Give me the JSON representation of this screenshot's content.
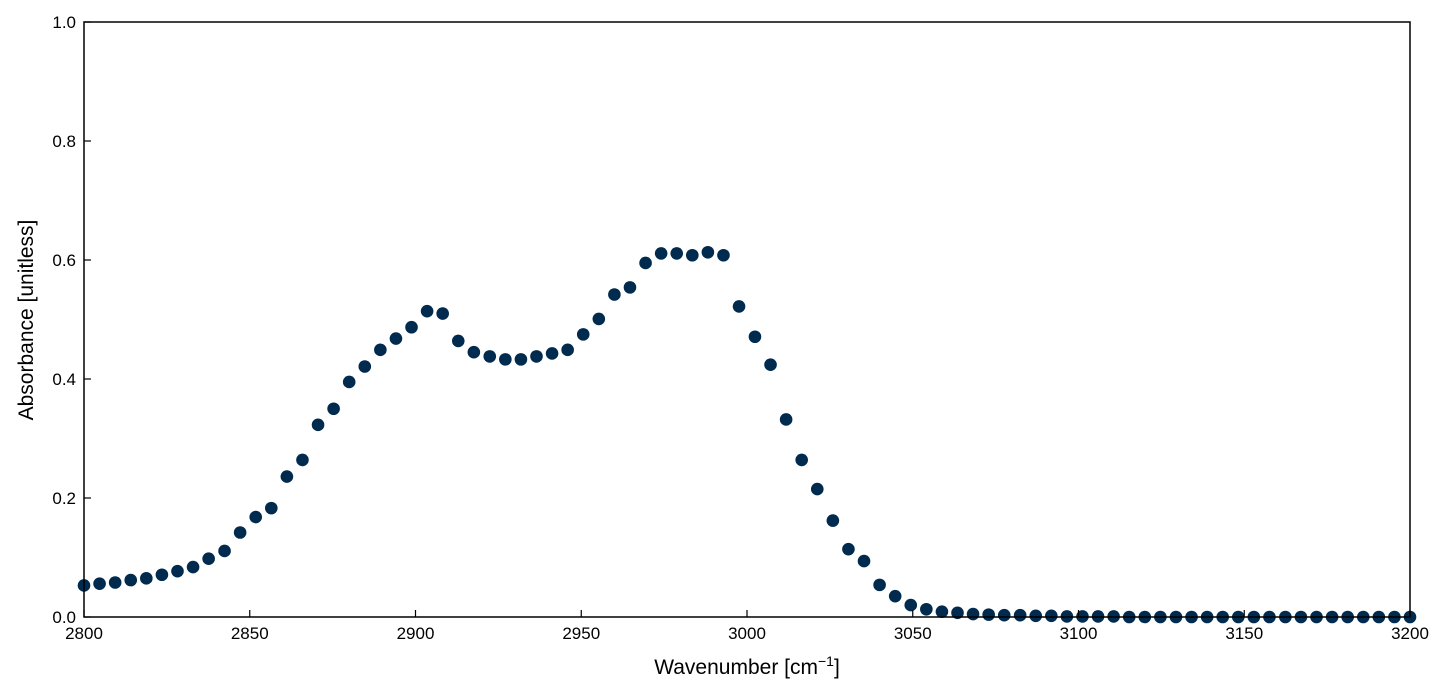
{
  "chart_data": {
    "type": "scatter",
    "title": "",
    "xlabel_main": "Wavenumber [cm",
    "xlabel_sup": "−1",
    "xlabel_end": "]",
    "ylabel": "Absorbance [unitless]",
    "xlim": [
      2800,
      3200
    ],
    "ylim": [
      0,
      1
    ],
    "xticks": [
      2800,
      2850,
      2900,
      2950,
      3000,
      3050,
      3100,
      3150,
      3200
    ],
    "yticks": [
      "0.0",
      "0.2",
      "0.4",
      "0.6",
      "0.8",
      "1.0"
    ],
    "grid": false,
    "marker_color": "#002a4e",
    "series": [
      {
        "x": [
          2800.0,
          2804.7,
          2809.4,
          2814.1,
          2818.8,
          2823.5,
          2828.2,
          2832.9,
          2837.6,
          2842.4,
          2847.1,
          2851.8,
          2856.5,
          2861.2,
          2865.9,
          2870.6,
          2875.3,
          2880.0,
          2884.7,
          2889.4,
          2894.1,
          2898.8,
          2903.5,
          2908.2,
          2912.9,
          2917.6,
          2922.4,
          2927.1,
          2931.8,
          2936.5,
          2941.2,
          2945.9,
          2950.6,
          2955.3,
          2960.0,
          2964.7,
          2969.4,
          2974.1,
          2978.8,
          2983.5,
          2988.2,
          2992.9,
          2997.6,
          3002.4,
          3007.1,
          3011.8,
          3016.5,
          3021.2,
          3025.9,
          3030.6,
          3035.3,
          3040.0,
          3044.7,
          3049.4,
          3054.1,
          3058.8,
          3063.5,
          3068.2,
          3072.9,
          3077.6,
          3082.4,
          3087.1,
          3091.8,
          3096.5,
          3101.2,
          3105.9,
          3110.6,
          3115.3,
          3120.0,
          3124.7,
          3129.4,
          3134.1,
          3138.8,
          3143.5,
          3148.2,
          3152.9,
          3157.6,
          3162.4,
          3167.1,
          3171.8,
          3176.5,
          3181.2,
          3185.9,
          3190.6,
          3195.3,
          3200.0
        ],
        "y": [
          0.053,
          0.056,
          0.058,
          0.062,
          0.065,
          0.071,
          0.077,
          0.084,
          0.098,
          0.111,
          0.142,
          0.168,
          0.183,
          0.236,
          0.264,
          0.323,
          0.35,
          0.395,
          0.421,
          0.449,
          0.468,
          0.487,
          0.514,
          0.51,
          0.464,
          0.445,
          0.438,
          0.433,
          0.433,
          0.438,
          0.443,
          0.449,
          0.475,
          0.501,
          0.542,
          0.554,
          0.595,
          0.611,
          0.611,
          0.608,
          0.613,
          0.608,
          0.522,
          0.471,
          0.424,
          0.332,
          0.264,
          0.215,
          0.162,
          0.114,
          0.094,
          0.054,
          0.035,
          0.02,
          0.013,
          0.009,
          0.007,
          0.005,
          0.004,
          0.003,
          0.003,
          0.002,
          0.002,
          0.001,
          0.001,
          0.001,
          0.001,
          0.0,
          0.0,
          0.0,
          0.0,
          0.0,
          0.0,
          0.0,
          0.0,
          0.0,
          0.0,
          0.0,
          0.0,
          0.0,
          0.0,
          0.0,
          0.0,
          0.0,
          0.0,
          0.0
        ]
      }
    ]
  }
}
